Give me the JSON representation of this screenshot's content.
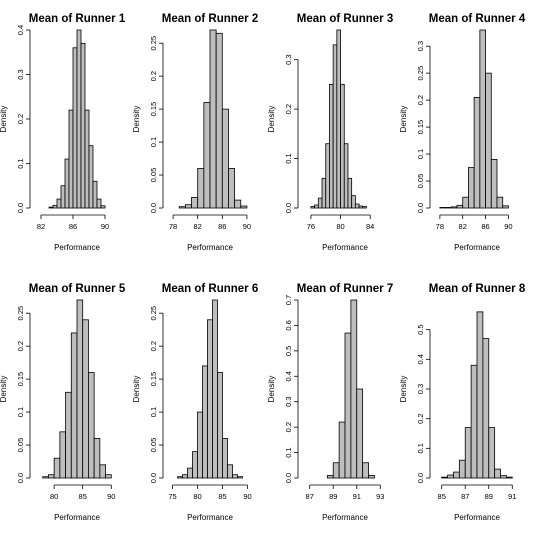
{
  "chart_data": [
    {
      "type": "bar",
      "title": "Mean of Runner 1",
      "xlabel": "Performance",
      "ylabel": "Density",
      "xlim": [
        81.5,
        91.5
      ],
      "xticks": [
        82,
        86,
        90
      ],
      "ylim": [
        0,
        0.4
      ],
      "yticks": [
        0.0,
        0.1,
        0.2,
        0.3,
        0.4
      ],
      "bin_start": 83.0,
      "bin_width": 0.5,
      "values": [
        0.002,
        0.006,
        0.02,
        0.05,
        0.11,
        0.22,
        0.36,
        0.4,
        0.37,
        0.22,
        0.14,
        0.06,
        0.02,
        0.005
      ]
    },
    {
      "type": "bar",
      "title": "Mean of Runner 2",
      "xlabel": "Performance",
      "ylabel": "Density",
      "xlim": [
        77.5,
        90.5
      ],
      "xticks": [
        78,
        82,
        86,
        90
      ],
      "ylim": [
        0,
        0.27
      ],
      "yticks": [
        0.0,
        0.05,
        0.1,
        0.15,
        0.2,
        0.25
      ],
      "bin_start": 79.0,
      "bin_width": 1.0,
      "values": [
        0.002,
        0.005,
        0.016,
        0.06,
        0.16,
        0.27,
        0.265,
        0.15,
        0.06,
        0.012,
        0.003
      ]
    },
    {
      "type": "bar",
      "title": "Mean of Runner 3",
      "xlabel": "Performance",
      "ylabel": "Density",
      "xlim": [
        75.2,
        86.0
      ],
      "xticks": [
        76,
        80,
        84
      ],
      "ylim": [
        0,
        0.36
      ],
      "yticks": [
        0.0,
        0.1,
        0.2,
        0.3
      ],
      "bin_start": 76.0,
      "bin_width": 0.5,
      "values": [
        0.003,
        0.006,
        0.02,
        0.06,
        0.13,
        0.25,
        0.33,
        0.36,
        0.25,
        0.13,
        0.06,
        0.025,
        0.008,
        0.004,
        0.003
      ]
    },
    {
      "type": "bar",
      "title": "Mean of Runner 4",
      "xlabel": "Performance",
      "ylabel": "Density",
      "xlim": [
        77.5,
        91.5
      ],
      "xticks": [
        78,
        82,
        86,
        90
      ],
      "ylim": [
        0,
        0.33
      ],
      "yticks": [
        0.0,
        0.05,
        0.1,
        0.15,
        0.2,
        0.25,
        0.3
      ],
      "bin_start": 78.0,
      "bin_width": 1.0,
      "values": [
        0.001,
        0.001,
        0.002,
        0.005,
        0.02,
        0.075,
        0.205,
        0.33,
        0.25,
        0.09,
        0.02,
        0.004
      ]
    },
    {
      "type": "bar",
      "title": "Mean of Runner 5",
      "xlabel": "Performance",
      "ylabel": "Density",
      "xlim": [
        77.0,
        91.0
      ],
      "xticks": [
        80,
        85,
        90
      ],
      "ylim": [
        0,
        0.27
      ],
      "yticks": [
        0.0,
        0.05,
        0.1,
        0.15,
        0.2,
        0.25
      ],
      "bin_start": 78.0,
      "bin_width": 1.0,
      "values": [
        0.002,
        0.005,
        0.03,
        0.07,
        0.13,
        0.22,
        0.27,
        0.24,
        0.16,
        0.06,
        0.02,
        0.005
      ]
    },
    {
      "type": "bar",
      "title": "Mean of Runner 6",
      "xlabel": "Performance",
      "ylabel": "Density",
      "xlim": [
        74.5,
        90.5
      ],
      "xticks": [
        75,
        80,
        85,
        90
      ],
      "ylim": [
        0,
        0.27
      ],
      "yticks": [
        0.0,
        0.05,
        0.1,
        0.15,
        0.2,
        0.25
      ],
      "bin_start": 76.0,
      "bin_width": 1.0,
      "values": [
        0.002,
        0.005,
        0.015,
        0.04,
        0.1,
        0.17,
        0.24,
        0.27,
        0.16,
        0.06,
        0.02,
        0.005,
        0.002
      ]
    },
    {
      "type": "bar",
      "title": "Mean of Runner 7",
      "xlabel": "Performance",
      "ylabel": "Density",
      "xlim": [
        86.6,
        93.4
      ],
      "xticks": [
        87,
        89,
        91,
        93
      ],
      "ylim": [
        0,
        0.7
      ],
      "yticks": [
        0.0,
        0.1,
        0.2,
        0.3,
        0.4,
        0.5,
        0.6,
        0.7
      ],
      "bin_start": 88.5,
      "bin_width": 0.5,
      "values": [
        0.01,
        0.06,
        0.22,
        0.57,
        0.7,
        0.35,
        0.06,
        0.01
      ]
    },
    {
      "type": "bar",
      "title": "Mean of Runner 8",
      "xlabel": "Performance",
      "ylabel": "Density",
      "xlim": [
        84.6,
        91.4
      ],
      "xticks": [
        85,
        87,
        89,
        91
      ],
      "ylim": [
        0,
        0.6
      ],
      "yticks": [
        0.0,
        0.1,
        0.2,
        0.3,
        0.4,
        0.5
      ],
      "bin_start": 85.0,
      "bin_width": 0.5,
      "values": [
        0.003,
        0.01,
        0.02,
        0.06,
        0.17,
        0.38,
        0.56,
        0.47,
        0.17,
        0.03,
        0.008,
        0.003
      ]
    }
  ]
}
